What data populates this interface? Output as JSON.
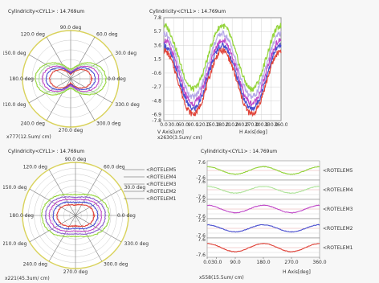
{
  "colors": {
    "background": "#f7f7f7",
    "panel_border": "#b0b0b0",
    "outer_ring": "#d9d25a",
    "grid": "#c8c8c8",
    "red": "#e0443a",
    "blue": "#4a4fd0",
    "magenta": "#c04ac8",
    "lightgreen": "#aee39a",
    "green": "#93d43a",
    "lavender": "#b6a8e8",
    "violet": "#8d5fd0",
    "dark_red": "#a01010"
  },
  "chart_data": [
    {
      "id": "polar-top-left",
      "type": "polar",
      "title": "Cylindricity<CYL1> : 14.769um",
      "scale_label": "x777(12.5um/ cm)",
      "angle_labels": [
        "0.0 deg",
        "30.0 deg",
        "60.0 deg",
        "90.0 deg",
        "120.0 deg",
        "150.0 deg",
        "180.0 deg",
        "210.0 deg",
        "240.0 deg",
        "270.0 deg",
        "300.0 deg",
        "330.0 deg"
      ],
      "label_text": [
        "0.0 deg",
        "30.0 deg",
        "60.0 deg",
        "90.0 deg",
        "120.0 deg",
        "150.0 deg",
        "180.0 deg",
        "210.0 deg",
        "240.0 deg",
        "270.0 deg",
        "300.0 deg",
        "330.0 deg"
      ],
      "series_colors": [
        "red",
        "blue",
        "magenta",
        "lightgreen",
        "green"
      ]
    },
    {
      "id": "line-top-right",
      "type": "line",
      "title": "Cylindricity<CYL1> : 14.769um",
      "xlabel": "H Axis[deg]",
      "ylabel": "V Axis[um]",
      "scale_label": "x2630(3.5um/ cm)",
      "xlim": [
        0,
        360
      ],
      "ylim": [
        -7.8,
        7.8
      ],
      "x_ticks": [
        0,
        30,
        60,
        90,
        120,
        150,
        180,
        210,
        240,
        270,
        300,
        330,
        360
      ],
      "x_tick_labels": [
        "0.0",
        "30.0",
        "60.0",
        "90.0",
        "120.0",
        "150.0",
        "180.0",
        "210.0",
        "240.0",
        "270.0",
        "300.0",
        "330.0",
        "360.0"
      ],
      "y_ticks": [
        7.8,
        5.7,
        3.6,
        1.5,
        -0.6,
        -2.7,
        -4.8,
        -6.9,
        -7.8
      ],
      "y_tick_labels": [
        "7.8",
        "5.7",
        "3.6",
        "1.5",
        "-0.6",
        "-2.7",
        "-4.8",
        "-6.9",
        "-7.8"
      ],
      "series": [
        {
          "color": "green",
          "amplitude": 4.8,
          "offset": 1.8
        },
        {
          "color": "lavender",
          "amplitude": 4.8,
          "offset": 0.6
        },
        {
          "color": "magenta",
          "amplitude": 4.8,
          "offset": -0.4
        },
        {
          "color": "blue",
          "amplitude": 4.8,
          "offset": -1.2
        },
        {
          "color": "red",
          "amplitude": 4.8,
          "offset": -2.0
        }
      ]
    },
    {
      "id": "polar-bottom-left",
      "type": "polar",
      "title": "Cylindricity<CYL1> : 14.769um",
      "scale_label": "x221(45.3um/ cm)",
      "angle_labels": [
        "0.0 deg",
        "30.0 deg",
        "60.0 deg",
        "90.0 deg",
        "120.0 deg",
        "150.0 deg",
        "180.0 deg",
        "210.0 deg",
        "240.0 deg",
        "270.0 deg",
        "300.0 deg",
        "330.0 deg"
      ],
      "label_text": [
        "0.0 deg",
        "30.0 deg",
        "60.0 deg",
        "90.0 deg",
        "120.0 deg",
        "150.0 deg",
        "180.0 deg",
        "210.0 deg",
        "240.0 deg",
        "270.0 deg",
        "300.0 deg",
        "330.0 deg"
      ],
      "legend": [
        "<ROTELEM5",
        "<ROTELEM4",
        "<ROTELEM3",
        "<ROTELEM2",
        "<ROTELEM1"
      ],
      "series_colors": [
        "red",
        "blue",
        "magenta",
        "violet",
        "green"
      ]
    },
    {
      "id": "stacked-bottom-right",
      "type": "line",
      "title": "Cylindricity<CYL1> : 14.769um",
      "xlabel": "H Axis[deg]",
      "scale_label": "x558(15.5um/ cm)",
      "xlim": [
        0,
        360
      ],
      "x_ticks": [
        0,
        30,
        90,
        180,
        270,
        360
      ],
      "x_tick_labels": [
        "0.0",
        "30.0",
        "90.0",
        "180.0",
        "270.0",
        "360.0"
      ],
      "strip_y_ticks": [
        "7.6",
        "-7.6"
      ],
      "series": [
        {
          "name": "<ROTELEM5",
          "color": "green",
          "amplitude": 4.2,
          "phase": 0
        },
        {
          "name": "<ROTELEM4",
          "color": "lightgreen",
          "amplitude": 3.8,
          "phase": 0
        },
        {
          "name": "<ROTELEM3",
          "color": "magenta",
          "amplitude": 4.2,
          "phase": 0
        },
        {
          "name": "<ROTELEM2",
          "color": "blue",
          "amplitude": 4.0,
          "phase": 0
        },
        {
          "name": "<ROTELEM1",
          "color": "red",
          "amplitude": 4.6,
          "phase": 0
        }
      ]
    }
  ]
}
